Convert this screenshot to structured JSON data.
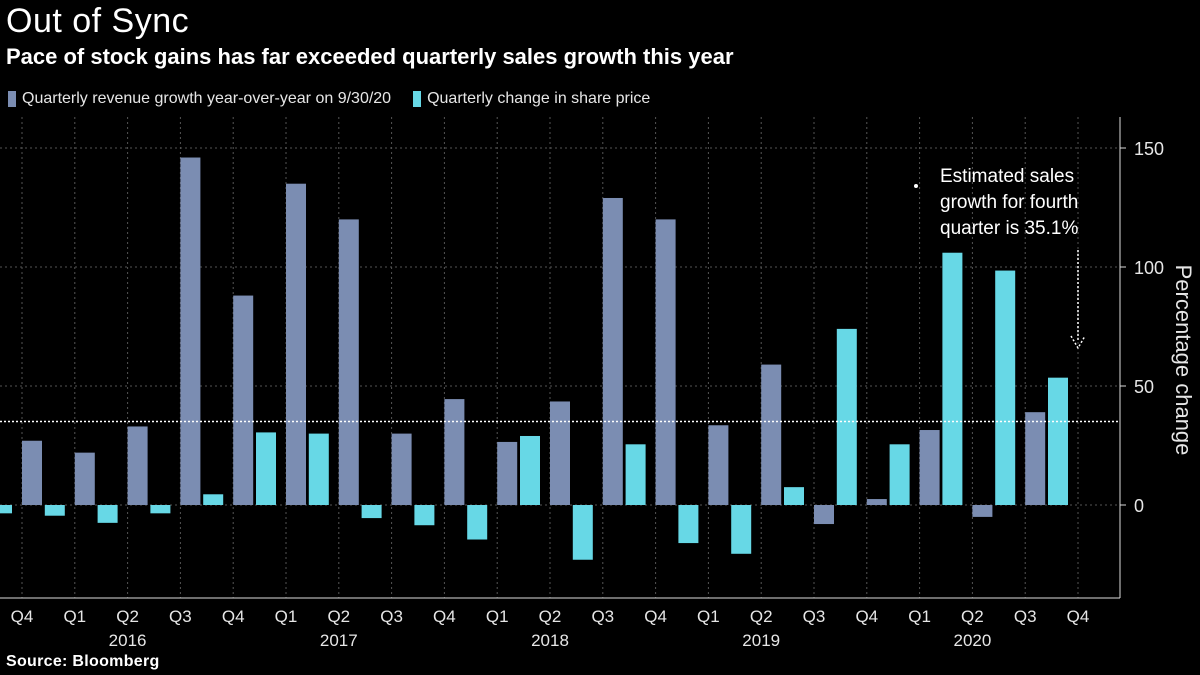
{
  "header": {
    "title": "Out of Sync",
    "subtitle": "Pace of stock gains has far exceeded quarterly sales growth this year"
  },
  "footer": {
    "source": "Source:  Bloomberg"
  },
  "colors": {
    "revenue": "#7b8db2",
    "share": "#67d8e6",
    "background": "#000000",
    "grid": "#555555"
  },
  "chart_data": {
    "type": "bar",
    "ylabel": "Percentage change",
    "ylim": [
      -35,
      160
    ],
    "yticks": [
      0,
      50,
      100,
      150
    ],
    "grid": true,
    "categories": [
      "Q4",
      "Q1",
      "Q2",
      "Q3",
      "Q4",
      "Q1",
      "Q2",
      "Q3",
      "Q4",
      "Q1",
      "Q2",
      "Q3",
      "Q4",
      "Q1",
      "Q2",
      "Q3",
      "Q4",
      "Q1",
      "Q2",
      "Q3",
      "Q4"
    ],
    "years": [
      {
        "label": "2016",
        "start": 1,
        "end": 3
      },
      {
        "label": "2017",
        "start": 5,
        "end": 7
      },
      {
        "label": "2018",
        "start": 9,
        "end": 11
      },
      {
        "label": "2019",
        "start": 13,
        "end": 15
      },
      {
        "label": "2020",
        "start": 17,
        "end": 19
      }
    ],
    "series": [
      {
        "name": "Quarterly change in share price",
        "values": [
          -3.5,
          -4.5,
          -7.5,
          -3.5,
          4.5,
          30.5,
          30,
          -5.5,
          -8.5,
          -14.5,
          29,
          -23,
          25.5,
          -16,
          -20.5,
          7.5,
          74,
          25.5,
          106,
          98.5,
          53.5
        ]
      },
      {
        "name": "Quarterly revenue growth year-over-year on 9/30/20",
        "values": [
          27,
          22,
          33,
          146,
          88,
          135,
          120,
          30,
          44.5,
          26.5,
          43.5,
          129,
          120,
          33.5,
          59,
          -8,
          2.5,
          31.5,
          -5,
          39,
          null
        ]
      }
    ],
    "reference_line": 35.1,
    "annotation": {
      "lines": [
        "Estimated sales",
        "growth for fourth",
        "quarter is 35.1%"
      ]
    }
  }
}
